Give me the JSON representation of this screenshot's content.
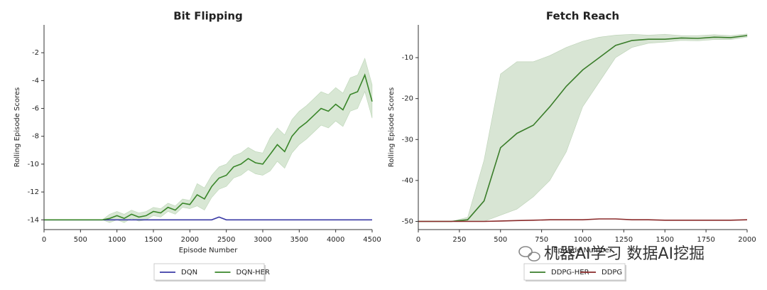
{
  "chart_data": [
    {
      "type": "line",
      "title": "Bit Flipping",
      "xlabel": "Episode Number",
      "ylabel": "Rolling Episode Scores",
      "x": [
        0,
        100,
        200,
        300,
        400,
        500,
        600,
        700,
        800,
        900,
        1000,
        1100,
        1200,
        1300,
        1400,
        1500,
        1600,
        1700,
        1800,
        1900,
        2000,
        2100,
        2200,
        2300,
        2400,
        2500,
        2600,
        2700,
        2800,
        2900,
        3000,
        3100,
        3200,
        3300,
        3400,
        3500,
        3600,
        3700,
        3800,
        3900,
        4000,
        4100,
        4200,
        4300,
        4400,
        4500
      ],
      "xlim": [
        0,
        4500
      ],
      "xticks": [
        0,
        500,
        1000,
        1500,
        2000,
        2500,
        3000,
        3500,
        4000,
        4500
      ],
      "ylim": [
        -14.7,
        0
      ],
      "yticks": [
        -14,
        -12,
        -10,
        -8,
        -6,
        -4,
        -2
      ],
      "legend": "bottom",
      "series": [
        {
          "name": "DQN",
          "color": "#3b3ba6",
          "values": [
            -14,
            -14,
            -14,
            -14,
            -14,
            -14,
            -14,
            -14,
            -14,
            -14,
            -14,
            -14,
            -14,
            -14,
            -14,
            -14,
            -14,
            -14,
            -14,
            -14,
            -14,
            -14,
            -14,
            -14,
            -13.8,
            -14,
            -14,
            -14,
            -14,
            -14,
            -14,
            -14,
            -14,
            -14,
            -14,
            -14,
            -14,
            -14,
            -14,
            -14,
            -14,
            -14,
            -14,
            -14,
            -14,
            -14
          ]
        },
        {
          "name": "DQN-HER",
          "color": "#3a862a",
          "values": [
            -14,
            -14,
            -14,
            -14,
            -14,
            -14,
            -14,
            -14,
            -14,
            -13.9,
            -13.7,
            -13.9,
            -13.6,
            -13.8,
            -13.7,
            -13.4,
            -13.5,
            -13.1,
            -13.3,
            -12.8,
            -12.9,
            -12.2,
            -12.5,
            -11.6,
            -11.0,
            -10.8,
            -10.2,
            -10.0,
            -9.6,
            -9.9,
            -10.0,
            -9.3,
            -8.6,
            -9.1,
            -8.0,
            -7.4,
            -7.0,
            -6.5,
            -6.0,
            -6.2,
            -5.7,
            -6.1,
            -5.0,
            -4.8,
            -3.6,
            -5.5
          ],
          "upper": [
            -14,
            -14,
            -14,
            -14,
            -14,
            -14,
            -14,
            -14,
            -14,
            -13.6,
            -13.4,
            -13.6,
            -13.3,
            -13.5,
            -13.4,
            -13.1,
            -13.2,
            -12.8,
            -13.0,
            -12.5,
            -12.6,
            -11.4,
            -11.7,
            -10.8,
            -10.2,
            -10.0,
            -9.4,
            -9.2,
            -8.8,
            -9.1,
            -9.2,
            -8.1,
            -7.4,
            -7.9,
            -6.8,
            -6.2,
            -5.8,
            -5.3,
            -4.8,
            -5.0,
            -4.5,
            -4.9,
            -3.8,
            -3.6,
            -2.4,
            -4.3
          ],
          "lower": [
            -14,
            -14,
            -14,
            -14,
            -14,
            -14,
            -14,
            -14,
            -14,
            -14.2,
            -14.0,
            -14.2,
            -13.9,
            -14.1,
            -14.0,
            -13.7,
            -13.8,
            -13.4,
            -13.6,
            -13.1,
            -13.2,
            -13.0,
            -13.3,
            -12.4,
            -11.8,
            -11.6,
            -11.0,
            -10.8,
            -10.4,
            -10.7,
            -10.8,
            -10.5,
            -9.8,
            -10.3,
            -9.2,
            -8.6,
            -8.2,
            -7.7,
            -7.2,
            -7.4,
            -6.9,
            -7.3,
            -6.2,
            -6.0,
            -4.8,
            -6.7
          ]
        }
      ]
    },
    {
      "type": "line",
      "title": "Fetch Reach",
      "xlabel": "Episode Number",
      "ylabel": "Rolling Episode Scores",
      "x": [
        0,
        100,
        200,
        300,
        400,
        500,
        600,
        700,
        800,
        900,
        1000,
        1100,
        1200,
        1300,
        1400,
        1500,
        1600,
        1700,
        1800,
        1900,
        2000
      ],
      "xlim": [
        0,
        2000
      ],
      "xticks": [
        0,
        250,
        500,
        750,
        1000,
        1250,
        1500,
        1750,
        2000
      ],
      "ylim": [
        -52,
        -2
      ],
      "yticks": [
        -50,
        -40,
        -30,
        -20,
        -10
      ],
      "legend": "bottom",
      "series": [
        {
          "name": "DDPG-HER",
          "color": "#3a7d2a",
          "values": [
            -50,
            -50,
            -50,
            -49.6,
            -45,
            -32,
            -28.5,
            -26.5,
            -22,
            -17,
            -13,
            -10,
            -7,
            -5.8,
            -5.5,
            -5.5,
            -5.2,
            -5.3,
            -5.0,
            -5.1,
            -4.6
          ],
          "upper": [
            -50,
            -50,
            -50,
            -49,
            -35,
            -14,
            -11,
            -11,
            -9.5,
            -7.5,
            -6,
            -5,
            -4.5,
            -4.3,
            -4.5,
            -4.3,
            -4.6,
            -4.6,
            -4.4,
            -4.6,
            -4.2
          ],
          "lower": [
            -50,
            -50,
            -50,
            -50,
            -50,
            -48.5,
            -47,
            -44,
            -40,
            -33,
            -22,
            -16,
            -10,
            -7.5,
            -6.5,
            -6.2,
            -5.8,
            -5.9,
            -5.6,
            -5.6,
            -5
          ]
        },
        {
          "name": "DDPG",
          "color": "#8a2a2a",
          "values": [
            -50,
            -50,
            -50,
            -50,
            -50,
            -49.9,
            -49.8,
            -49.7,
            -49.6,
            -49.6,
            -49.6,
            -49.4,
            -49.4,
            -49.6,
            -49.6,
            -49.7,
            -49.7,
            -49.7,
            -49.7,
            -49.7,
            -49.6
          ]
        }
      ]
    }
  ],
  "watermark": "机器AI学习 数据AI挖掘"
}
